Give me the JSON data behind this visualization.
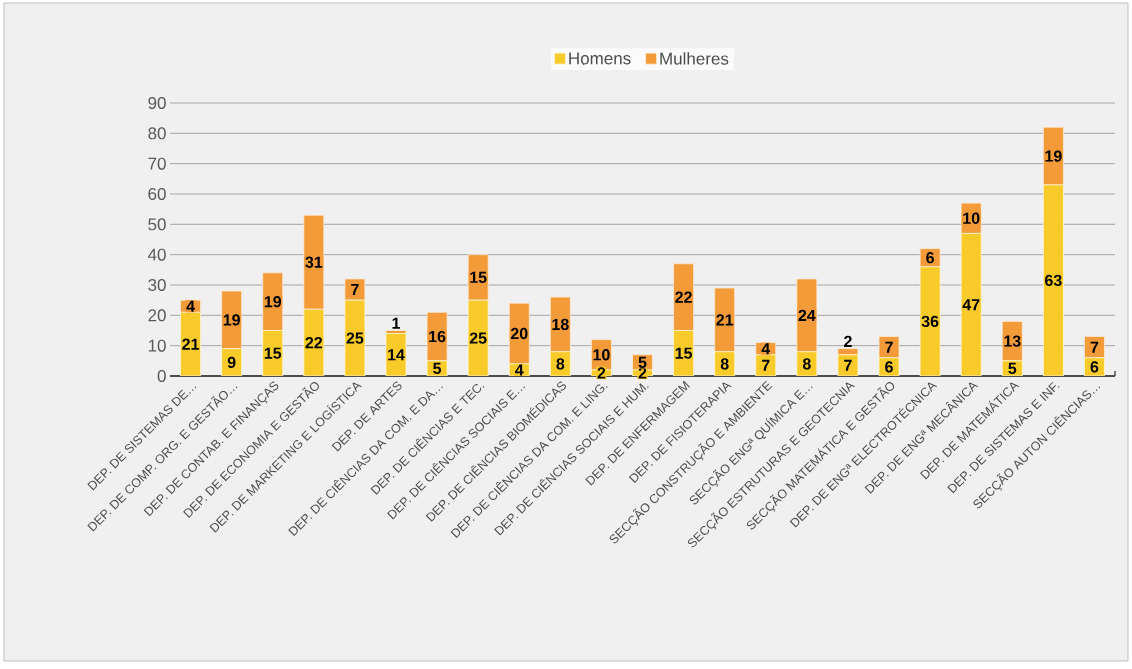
{
  "chart_data": {
    "type": "bar",
    "stacked": true,
    "categories": [
      "DEP. DE SISTEMAS DE…",
      "DEP. DE COMP. ORG. E GESTÃO…",
      "DEP. DE CONTAB. E FINANÇAS",
      "DEP. DE ECONOMIA E GESTÃO",
      "DEP. DE MARKETING E LOGÍSTICA",
      "DEP. DE ARTES",
      "DEP. DE CIÊNCIAS DA COM. E DA…",
      "DEP. DE CIÊNCIAS E TEC.",
      "DEP. DE CIÊNCIAS SOCIAIS E…",
      "DEP. DE CIÊNCIAS BIOMÉDICAS",
      "DEP. DE CIÊNCIAS DA COM. E LING.",
      "DEP. DE CIÊNCIAS SOCIAIS E HUM.",
      "DEP. DE ENFERMAGEM",
      "DEP. DE FISIOTERAPIA",
      "SECÇÃO CONSTRUÇÃO E AMBIENTE",
      "SECÇÃO ENGª QUÍMICA E…",
      "SECÇÃO ESTRUTURAS E GEOTECNIA",
      "SECÇÃO MATEMÁTICA E GESTÃO",
      "DEP. DE ENGª ELECTROTÉCNICA",
      "DEP. DE ENGª MECÂNICA",
      "DEP. DE MATEMÁTICA",
      "DEP. DE SISTEMAS E INF.",
      "SECÇÃO AUTON CIÊNCIAS…"
    ],
    "series": [
      {
        "name": "Homens",
        "color": "#f9cb2a",
        "values": [
          21,
          9,
          15,
          22,
          25,
          14,
          5,
          25,
          4,
          8,
          2,
          2,
          15,
          8,
          7,
          8,
          7,
          6,
          36,
          47,
          5,
          63,
          6
        ]
      },
      {
        "name": "Mulheres",
        "color": "#f29b38",
        "values": [
          4,
          19,
          19,
          31,
          7,
          1,
          16,
          15,
          20,
          18,
          10,
          5,
          22,
          21,
          4,
          24,
          2,
          7,
          6,
          10,
          13,
          19,
          7
        ]
      }
    ],
    "ylim": [
      0,
      90
    ],
    "yticks": [
      0,
      10,
      20,
      30,
      40,
      50,
      60,
      70,
      80,
      90
    ],
    "grid": "y",
    "legend": "top",
    "data_labels": true
  }
}
